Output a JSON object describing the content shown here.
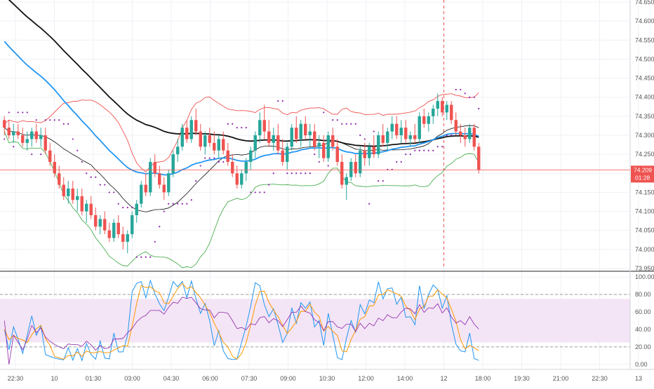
{
  "chart_data": {
    "type": "candlestick",
    "instrument_title": "",
    "colors": {
      "up_candle": "#26a69a",
      "down_candle": "#ef5350",
      "ma_black": "#111111",
      "ma_blue": "#2196f3",
      "bb_upper": "#ef5350",
      "bb_lower": "#4caf50",
      "bb_mid": "#111111",
      "psar": "#8e24aa",
      "stoch_k": "#2196f3",
      "stoch_d": "#ff9800",
      "rsi": "#8e24aa",
      "price_line": "#ef5350",
      "stoch_band_fill": "#f3e5f5",
      "session_marker": "#ef5350"
    },
    "price_axis": {
      "ylim": [
        73.95,
        74.65
      ],
      "ticks": [
        "74.650",
        "74.600",
        "74.550",
        "74.500",
        "74.450",
        "74.400",
        "74.350",
        "74.300",
        "74.250",
        "74.200",
        "74.150",
        "74.100",
        "74.050",
        "74.000",
        "73.950"
      ],
      "grid": true,
      "position": "right"
    },
    "last_price": {
      "value": "74.209",
      "countdown": "01:28"
    },
    "oscillator_axis": {
      "ylim": [
        -5,
        105
      ],
      "ticks": [
        "100.00",
        "80.00",
        "60.00",
        "40.00",
        "20.00",
        "0.00"
      ],
      "band": [
        25,
        75
      ],
      "dashed_levels": [
        80,
        20
      ]
    },
    "time_axis": {
      "labels": [
        "22:30",
        "10",
        "01:30",
        "03:00",
        "04:30",
        "06:00",
        "07:30",
        "09:00",
        "10:30",
        "12:00",
        "14:00",
        "12",
        "18:00",
        "19:30",
        "21:00",
        "22:30",
        "13"
      ],
      "session_marker_label": "12"
    },
    "ohlc": [
      [
        74.34,
        74.35,
        74.3,
        74.32
      ],
      [
        74.32,
        74.34,
        74.29,
        74.3
      ],
      [
        74.3,
        74.33,
        74.28,
        74.31
      ],
      [
        74.31,
        74.33,
        74.29,
        74.3
      ],
      [
        74.3,
        74.32,
        74.27,
        74.28
      ],
      [
        74.28,
        74.31,
        74.26,
        74.29
      ],
      [
        74.29,
        74.32,
        74.27,
        74.31
      ],
      [
        74.31,
        74.33,
        74.28,
        74.29
      ],
      [
        74.29,
        74.32,
        74.27,
        74.3
      ],
      [
        74.3,
        74.32,
        74.25,
        74.26
      ],
      [
        74.26,
        74.28,
        74.22,
        74.23
      ],
      [
        74.23,
        74.25,
        74.19,
        74.2
      ],
      [
        74.2,
        74.22,
        74.16,
        74.17
      ],
      [
        74.17,
        74.19,
        74.13,
        74.14
      ],
      [
        74.14,
        74.18,
        74.12,
        74.16
      ],
      [
        74.16,
        74.18,
        74.12,
        74.13
      ],
      [
        74.13,
        74.16,
        74.1,
        74.14
      ],
      [
        74.14,
        74.16,
        74.09,
        74.1
      ],
      [
        74.1,
        74.13,
        74.07,
        74.12
      ],
      [
        74.12,
        74.14,
        74.08,
        74.09
      ],
      [
        74.09,
        74.11,
        74.05,
        74.06
      ],
      [
        74.06,
        74.09,
        74.04,
        74.08
      ],
      [
        74.08,
        74.1,
        74.04,
        74.05
      ],
      [
        74.05,
        74.07,
        74.02,
        74.03
      ],
      [
        74.03,
        74.08,
        74.02,
        74.07
      ],
      [
        74.07,
        74.09,
        74.03,
        74.04
      ],
      [
        74.04,
        74.06,
        74.0,
        74.02
      ],
      [
        74.02,
        74.05,
        73.99,
        74.04
      ],
      [
        74.04,
        74.1,
        74.03,
        74.09
      ],
      [
        74.09,
        74.13,
        74.07,
        74.12
      ],
      [
        74.12,
        74.18,
        74.11,
        74.17
      ],
      [
        74.17,
        74.2,
        74.14,
        74.15
      ],
      [
        74.15,
        74.24,
        74.14,
        74.23
      ],
      [
        74.23,
        74.25,
        74.19,
        74.2
      ],
      [
        74.2,
        74.22,
        74.16,
        74.17
      ],
      [
        74.17,
        74.19,
        74.13,
        74.15
      ],
      [
        74.15,
        74.21,
        74.14,
        74.2
      ],
      [
        74.2,
        74.26,
        74.19,
        74.25
      ],
      [
        74.25,
        74.29,
        74.23,
        74.27
      ],
      [
        74.27,
        74.33,
        74.26,
        74.32
      ],
      [
        74.32,
        74.34,
        74.28,
        74.29
      ],
      [
        74.29,
        74.35,
        74.28,
        74.34
      ],
      [
        74.34,
        74.37,
        74.3,
        74.31
      ],
      [
        74.31,
        74.33,
        74.26,
        74.27
      ],
      [
        74.27,
        74.31,
        74.25,
        74.3
      ],
      [
        74.3,
        74.32,
        74.27,
        74.28
      ],
      [
        74.28,
        74.31,
        74.25,
        74.26
      ],
      [
        74.26,
        74.3,
        74.24,
        74.29
      ],
      [
        74.29,
        74.31,
        74.25,
        74.26
      ],
      [
        74.26,
        74.28,
        74.22,
        74.23
      ],
      [
        74.23,
        74.25,
        74.19,
        74.2
      ],
      [
        74.2,
        74.22,
        74.16,
        74.17
      ],
      [
        74.17,
        74.21,
        74.16,
        74.2
      ],
      [
        74.2,
        74.24,
        74.18,
        74.23
      ],
      [
        74.23,
        74.27,
        74.21,
        74.26
      ],
      [
        74.26,
        74.31,
        74.24,
        74.3
      ],
      [
        74.3,
        74.36,
        74.28,
        74.34
      ],
      [
        74.34,
        74.38,
        74.29,
        74.31
      ],
      [
        74.31,
        74.34,
        74.27,
        74.28
      ],
      [
        74.28,
        74.32,
        74.26,
        74.3
      ],
      [
        74.3,
        74.33,
        74.25,
        74.26
      ],
      [
        74.26,
        74.29,
        74.22,
        74.23
      ],
      [
        74.23,
        74.28,
        74.21,
        74.27
      ],
      [
        74.27,
        74.33,
        74.26,
        74.32
      ],
      [
        74.32,
        74.35,
        74.28,
        74.29
      ],
      [
        74.29,
        74.34,
        74.27,
        74.33
      ],
      [
        74.33,
        74.35,
        74.29,
        74.3
      ],
      [
        74.3,
        74.33,
        74.27,
        74.31
      ],
      [
        74.31,
        74.33,
        74.26,
        74.27
      ],
      [
        74.27,
        74.3,
        74.24,
        74.28
      ],
      [
        74.28,
        74.3,
        74.23,
        74.24
      ],
      [
        74.24,
        74.31,
        74.23,
        74.3
      ],
      [
        74.3,
        74.32,
        74.26,
        74.27
      ],
      [
        74.27,
        74.29,
        74.22,
        74.23
      ],
      [
        74.23,
        74.25,
        74.16,
        74.17
      ],
      [
        74.17,
        74.2,
        74.13,
        74.19
      ],
      [
        74.19,
        74.24,
        74.18,
        74.23
      ],
      [
        74.23,
        74.25,
        74.19,
        74.2
      ],
      [
        74.2,
        74.27,
        74.19,
        74.26
      ],
      [
        74.26,
        74.28,
        74.22,
        74.24
      ],
      [
        74.24,
        74.28,
        74.22,
        74.27
      ],
      [
        74.27,
        74.3,
        74.24,
        74.25
      ],
      [
        74.25,
        74.31,
        74.24,
        74.3
      ],
      [
        74.3,
        74.33,
        74.27,
        74.28
      ],
      [
        74.28,
        74.32,
        74.26,
        74.31
      ],
      [
        74.31,
        74.35,
        74.29,
        74.33
      ],
      [
        74.33,
        74.35,
        74.29,
        74.3
      ],
      [
        74.3,
        74.34,
        74.28,
        74.32
      ],
      [
        74.32,
        74.34,
        74.28,
        74.29
      ],
      [
        74.29,
        74.31,
        74.27,
        74.3
      ],
      [
        74.3,
        74.33,
        74.28,
        74.29
      ],
      [
        74.29,
        74.36,
        74.28,
        74.35
      ],
      [
        74.35,
        74.37,
        74.32,
        74.33
      ],
      [
        74.33,
        74.36,
        74.31,
        74.35
      ],
      [
        74.35,
        74.38,
        74.33,
        74.37
      ],
      [
        74.37,
        74.41,
        74.35,
        74.39
      ],
      [
        74.39,
        74.4,
        74.35,
        74.36
      ],
      [
        74.36,
        74.39,
        74.34,
        74.38
      ],
      [
        74.38,
        74.39,
        74.33,
        74.34
      ],
      [
        74.34,
        74.36,
        74.3,
        74.31
      ],
      [
        74.31,
        74.33,
        74.28,
        74.3
      ],
      [
        74.3,
        74.32,
        74.27,
        74.29
      ],
      [
        74.29,
        74.33,
        74.28,
        74.32
      ],
      [
        74.32,
        74.33,
        74.26,
        74.27
      ],
      [
        74.27,
        74.28,
        74.2,
        74.209
      ]
    ]
  }
}
